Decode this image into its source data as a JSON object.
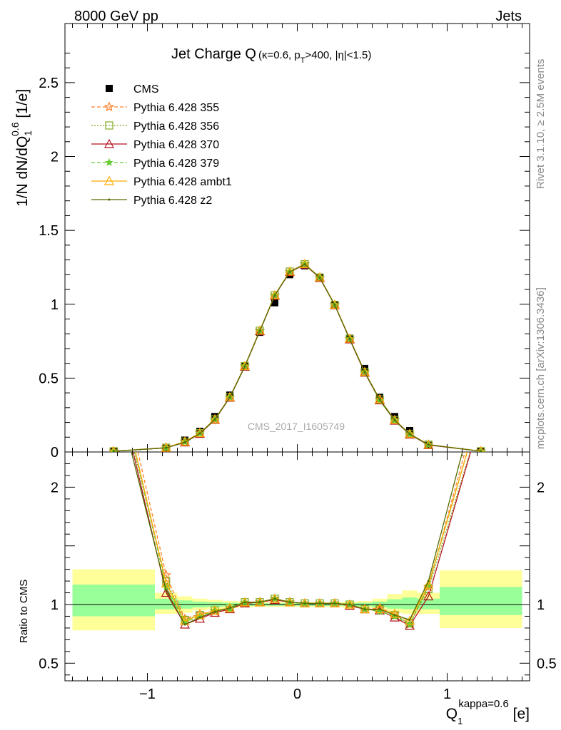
{
  "header": {
    "left": "8000 GeV pp",
    "right": "Jets"
  },
  "side_labels": {
    "rivet": "Rivet 3.1.10, ≥ 2.5M events",
    "mcplots": "mcplots.cern.ch [arXiv:1306.3436]"
  },
  "watermark": "CMS_2017_I1605749",
  "title": {
    "main": "Jet Charge Q",
    "sub_open": "(κ=0.6, p",
    "sub_T": "T",
    "sub_rest": ">400, |η|<1.5)"
  },
  "ylabel": {
    "main": "1/N dN/dQ",
    "sub": "1",
    "sup": "0.6",
    "unit": " [1/e]"
  },
  "ratio_ylabel": "Ratio to CMS",
  "xlabel": {
    "main": "Q",
    "sub": "1",
    "sup": "kappa=0.6",
    "unit": " [e]"
  },
  "colors": {
    "data": "#000000",
    "p355": "#ff7f2a",
    "p356": "#7faa1e",
    "p370": "#b4141e",
    "p379": "#66cc33",
    "ambt1": "#ffaa00",
    "z2": "#556b00",
    "band_outer": "#ffff99",
    "band_inner": "#99ff99"
  },
  "chart_data": [
    {
      "type": "line",
      "x": [
        -1.225,
        -0.875,
        -0.75,
        -0.65,
        -0.55,
        -0.45,
        -0.35,
        -0.25,
        -0.15,
        -0.05,
        0.05,
        0.15,
        0.25,
        0.35,
        0.45,
        0.55,
        0.65,
        0.75,
        0.875,
        1.225
      ],
      "xlim": [
        -1.55,
        1.55
      ],
      "ylim": [
        0,
        2.9
      ],
      "yticks": [
        0,
        0.5,
        1,
        1.5,
        2,
        2.5
      ],
      "ytick_labels": [
        "0",
        "0.5",
        "1",
        "1.5",
        "2",
        "2.5"
      ],
      "legend_position": "top-left",
      "series": [
        {
          "name": "CMS",
          "key": "data",
          "values": [
            0.003,
            0.025,
            0.08,
            0.14,
            0.24,
            0.385,
            0.58,
            0.81,
            1.01,
            1.2,
            1.26,
            1.18,
            0.995,
            0.77,
            0.565,
            0.37,
            0.24,
            0.145,
            0.045,
            0.003
          ]
        },
        {
          "name": "Pythia 6.428 355",
          "key": "p355",
          "values": [
            0.005,
            0.03,
            0.07,
            0.13,
            0.22,
            0.37,
            0.58,
            0.82,
            1.06,
            1.22,
            1.27,
            1.18,
            0.995,
            0.765,
            0.54,
            0.355,
            0.215,
            0.12,
            0.05,
            0.005
          ]
        },
        {
          "name": "Pythia 6.428 356",
          "key": "p356",
          "values": [
            0.005,
            0.029,
            0.07,
            0.128,
            0.221,
            0.371,
            0.581,
            0.821,
            1.061,
            1.221,
            1.271,
            1.181,
            0.996,
            0.766,
            0.541,
            0.356,
            0.216,
            0.122,
            0.05,
            0.005
          ]
        },
        {
          "name": "Pythia 6.428 370",
          "key": "p370",
          "values": [
            0.005,
            0.028,
            0.065,
            0.123,
            0.218,
            0.368,
            0.578,
            0.818,
            1.058,
            1.218,
            1.268,
            1.178,
            0.994,
            0.762,
            0.537,
            0.35,
            0.212,
            0.118,
            0.047,
            0.005
          ]
        },
        {
          "name": "Pythia 6.428 379",
          "key": "p379",
          "values": [
            0.005,
            0.028,
            0.068,
            0.126,
            0.221,
            0.371,
            0.581,
            0.821,
            1.061,
            1.221,
            1.271,
            1.181,
            0.996,
            0.766,
            0.541,
            0.347,
            0.214,
            0.12,
            0.049,
            0.005
          ]
        },
        {
          "name": "Pythia 6.428 ambt1",
          "key": "ambt1",
          "values": [
            0.005,
            0.029,
            0.07,
            0.128,
            0.222,
            0.372,
            0.582,
            0.822,
            1.062,
            1.222,
            1.272,
            1.182,
            0.997,
            0.767,
            0.542,
            0.357,
            0.217,
            0.123,
            0.05,
            0.005
          ]
        },
        {
          "name": "Pythia 6.428 z2",
          "key": "z2",
          "values": [
            0.005,
            0.028,
            0.066,
            0.125,
            0.22,
            0.37,
            0.58,
            0.82,
            1.06,
            1.22,
            1.27,
            1.18,
            0.995,
            0.765,
            0.54,
            0.355,
            0.215,
            0.122,
            0.049,
            0.005
          ]
        }
      ]
    },
    {
      "type": "line",
      "ylabel": "Ratio to CMS",
      "x": [
        -1.225,
        -0.875,
        -0.75,
        -0.65,
        -0.55,
        -0.45,
        -0.35,
        -0.25,
        -0.15,
        -0.05,
        0.05,
        0.15,
        0.25,
        0.35,
        0.45,
        0.55,
        0.65,
        0.75,
        0.875,
        1.225
      ],
      "xlim": [
        -1.55,
        1.55
      ],
      "ylim": [
        0.35,
        2.3
      ],
      "xticks": [
        -1,
        0,
        1
      ],
      "xtick_labels": [
        "−1",
        "0",
        "1"
      ],
      "yticks": [
        0.5,
        1,
        2
      ],
      "ytick_labels": [
        "0.5",
        "1",
        "2"
      ],
      "reference_line": 1,
      "band_edges": [
        -1.5,
        -0.95,
        -0.8,
        -0.7,
        -0.6,
        -0.5,
        -0.4,
        -0.3,
        -0.2,
        -0.1,
        0,
        0.1,
        0.2,
        0.3,
        0.4,
        0.5,
        0.6,
        0.7,
        0.8,
        0.95,
        1.5
      ],
      "band_outer": [
        [
          0.78,
          1.3
        ],
        [
          0.92,
          1.1
        ],
        [
          0.93,
          1.07
        ],
        [
          0.95,
          1.05
        ],
        [
          0.96,
          1.04
        ],
        [
          0.97,
          1.03
        ],
        [
          0.975,
          1.025
        ],
        [
          0.98,
          1.02
        ],
        [
          0.98,
          1.02
        ],
        [
          0.98,
          1.02
        ],
        [
          0.98,
          1.02
        ],
        [
          0.98,
          1.02
        ],
        [
          0.98,
          1.02
        ],
        [
          0.975,
          1.025
        ],
        [
          0.97,
          1.03
        ],
        [
          0.95,
          1.05
        ],
        [
          0.93,
          1.09
        ],
        [
          0.92,
          1.12
        ],
        [
          0.92,
          1.1
        ],
        [
          0.8,
          1.29
        ]
      ],
      "band_inner": [
        [
          0.9,
          1.17
        ],
        [
          0.96,
          1.05
        ],
        [
          0.965,
          1.035
        ],
        [
          0.975,
          1.025
        ],
        [
          0.98,
          1.02
        ],
        [
          0.985,
          1.015
        ],
        [
          0.988,
          1.012
        ],
        [
          0.99,
          1.01
        ],
        [
          0.99,
          1.01
        ],
        [
          0.99,
          1.01
        ],
        [
          0.99,
          1.01
        ],
        [
          0.99,
          1.01
        ],
        [
          0.99,
          1.01
        ],
        [
          0.988,
          1.012
        ],
        [
          0.985,
          1.015
        ],
        [
          0.975,
          1.025
        ],
        [
          0.965,
          1.045
        ],
        [
          0.96,
          1.06
        ],
        [
          0.96,
          1.05
        ],
        [
          0.91,
          1.15
        ]
      ],
      "series": [
        {
          "name": "Pythia 6.428 355",
          "key": "p355",
          "values": [
            3.2,
            1.25,
            0.88,
            0.92,
            0.94,
            0.97,
            1.01,
            1.02,
            1.05,
            1.02,
            1.01,
            1.01,
            1.01,
            1.0,
            0.96,
            0.97,
            0.92,
            0.83,
            1.15,
            2.8
          ]
        },
        {
          "name": "Pythia 6.428 356",
          "key": "p356",
          "values": [
            3.0,
            1.2,
            0.87,
            0.91,
            0.95,
            0.97,
            1.02,
            1.02,
            1.05,
            1.02,
            1.01,
            1.01,
            1.01,
            1.0,
            0.96,
            0.96,
            0.91,
            0.84,
            1.13,
            2.6
          ]
        },
        {
          "name": "Pythia 6.428 370",
          "key": "p370",
          "values": [
            3.0,
            1.1,
            0.83,
            0.88,
            0.93,
            0.96,
            1.01,
            1.02,
            1.04,
            1.02,
            1.01,
            1.01,
            1.01,
            0.99,
            0.96,
            0.95,
            0.89,
            0.82,
            1.07,
            2.6
          ]
        },
        {
          "name": "Pythia 6.428 379",
          "key": "p379",
          "values": [
            3.1,
            1.15,
            0.85,
            0.9,
            0.95,
            0.96,
            1.02,
            1.02,
            1.05,
            1.02,
            1.01,
            1.01,
            1.01,
            1.0,
            0.96,
            0.94,
            0.9,
            0.83,
            1.16,
            2.7
          ]
        },
        {
          "name": "Pythia 6.428 ambt1",
          "key": "ambt1",
          "values": [
            3.1,
            1.18,
            0.86,
            0.91,
            0.95,
            0.97,
            1.02,
            1.02,
            1.05,
            1.02,
            1.01,
            1.01,
            1.01,
            1.0,
            0.96,
            0.96,
            0.92,
            0.86,
            1.17,
            2.7
          ]
        },
        {
          "name": "Pythia 6.428 z2",
          "key": "z2",
          "values": [
            2.9,
            1.12,
            0.83,
            0.89,
            0.94,
            0.97,
            1.02,
            1.02,
            1.05,
            1.02,
            1.01,
            1.01,
            1.01,
            1.0,
            0.96,
            0.96,
            0.91,
            0.87,
            1.2,
            2.9
          ]
        }
      ]
    }
  ]
}
